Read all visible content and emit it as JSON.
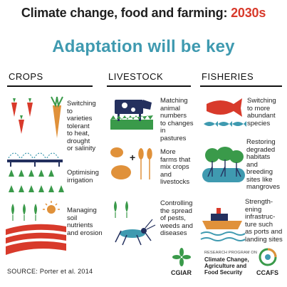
{
  "title": {
    "main": "Climate change, food and farming: ",
    "year": "2030s"
  },
  "subtitle": "Adaptation will be key",
  "columns": [
    {
      "heading": "CROPS"
    },
    {
      "heading": "LIVESTOCK"
    },
    {
      "heading": "FISHERIES"
    }
  ],
  "crops": [
    {
      "text": "Switching\nto\nvarieties\ntolerant\nto heat,\ndrought\nor salinity"
    },
    {
      "text": "Optimising\nirrigation"
    },
    {
      "text": "Managing\nsoil\nnutrients\nand erosion"
    }
  ],
  "livestock": [
    {
      "text": "Matching\nanimal\nnumbers\nto changes\nin\npastures"
    },
    {
      "text": "More\nfarms that\nmix crops\nand\nlivestocks"
    },
    {
      "text": "Controlling\nthe spread\nof pests,\nweeds and\ndiseases"
    }
  ],
  "fisheries": [
    {
      "text": "Switching\nto more\nabundant\nspecies"
    },
    {
      "text": "Restoring\ndegraded\nhabitats\nand\nbreeding\nsites like\nmangroves"
    },
    {
      "text": "Strength-\nening\ninfrastruc-\nture such\nas ports and\nlanding sites"
    }
  ],
  "source": "SOURCE: Porter et al. 2014",
  "logos": {
    "cgiar": "CGIAR",
    "program_small": "RESEARCH PROGRAM ON",
    "program": "Climate Change,\nAgriculture and\nFood Security",
    "ccafs": "CCAFS"
  },
  "colors": {
    "accent_red": "#d83a2b",
    "accent_blue": "#3f9ab0",
    "orange": "#e0913a",
    "green": "#3a9a4a",
    "navy": "#24305e"
  }
}
